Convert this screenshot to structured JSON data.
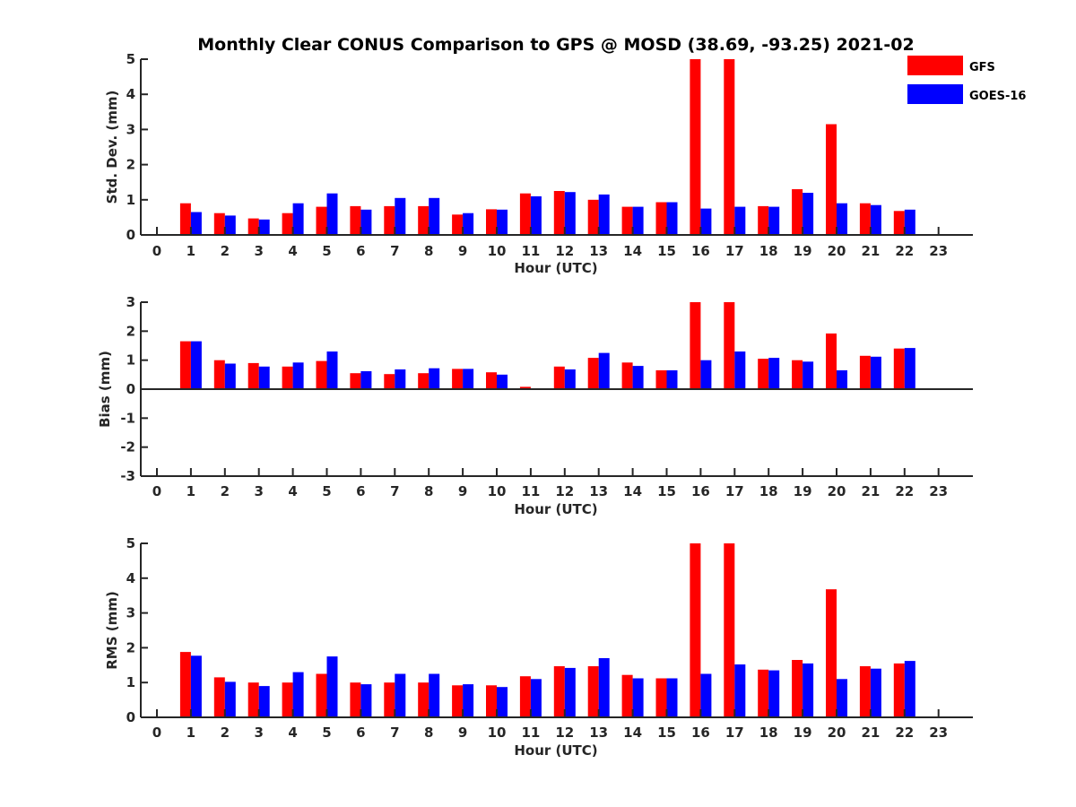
{
  "title": "Monthly Clear CONUS Comparison to GPS @ MOSD (38.69, -93.25) 2021-02",
  "legend": [
    {
      "name": "GFS",
      "color": "#ff0000"
    },
    {
      "name": "GOES-16",
      "color": "#0000ff"
    }
  ],
  "chart_data": [
    {
      "type": "bar",
      "id": "std",
      "ylabel": "Std. Dev. (mm)",
      "xlabel": "Hour (UTC)",
      "ylim": [
        0,
        5
      ],
      "yticks": [
        0,
        1,
        2,
        3,
        4,
        5
      ],
      "categories": [
        "0",
        "1",
        "2",
        "3",
        "4",
        "5",
        "6",
        "7",
        "8",
        "9",
        "10",
        "11",
        "12",
        "13",
        "14",
        "15",
        "16",
        "17",
        "18",
        "19",
        "20",
        "21",
        "22",
        "23"
      ],
      "series": [
        {
          "name": "GFS",
          "color": "#ff0000",
          "values": [
            null,
            0.9,
            0.62,
            0.47,
            0.62,
            0.8,
            0.82,
            0.82,
            0.82,
            0.58,
            0.73,
            1.18,
            1.25,
            1.0,
            0.8,
            0.93,
            5.0,
            5.0,
            0.82,
            1.3,
            3.15,
            0.9,
            0.68,
            null
          ]
        },
        {
          "name": "GOES-16",
          "color": "#0000ff",
          "values": [
            null,
            0.65,
            0.55,
            0.44,
            0.9,
            1.18,
            0.72,
            1.05,
            1.05,
            0.62,
            0.72,
            1.1,
            1.22,
            1.15,
            0.8,
            0.93,
            0.75,
            0.8,
            0.8,
            1.2,
            0.9,
            0.85,
            0.72,
            null
          ]
        }
      ]
    },
    {
      "type": "bar",
      "id": "bias",
      "ylabel": "Bias (mm)",
      "xlabel": "Hour (UTC)",
      "ylim": [
        -3,
        3
      ],
      "yticks": [
        -3,
        -2,
        -1,
        0,
        1,
        2,
        3
      ],
      "categories": [
        "0",
        "1",
        "2",
        "3",
        "4",
        "5",
        "6",
        "7",
        "8",
        "9",
        "10",
        "11",
        "12",
        "13",
        "14",
        "15",
        "16",
        "17",
        "18",
        "19",
        "20",
        "21",
        "22",
        "23"
      ],
      "series": [
        {
          "name": "GFS",
          "color": "#ff0000",
          "values": [
            null,
            1.65,
            1.0,
            0.9,
            0.78,
            0.97,
            0.55,
            0.52,
            0.55,
            0.7,
            0.58,
            0.08,
            0.78,
            1.08,
            0.92,
            0.65,
            3.0,
            3.0,
            1.05,
            1.0,
            1.92,
            1.15,
            1.4,
            null
          ]
        },
        {
          "name": "GOES-16",
          "color": "#0000ff",
          "values": [
            null,
            1.65,
            0.88,
            0.78,
            0.92,
            1.3,
            0.62,
            0.68,
            0.72,
            0.7,
            0.5,
            0.03,
            0.68,
            1.25,
            0.8,
            0.65,
            1.0,
            1.3,
            1.08,
            0.95,
            0.65,
            1.12,
            1.42,
            null
          ]
        }
      ]
    },
    {
      "type": "bar",
      "id": "rms",
      "ylabel": "RMS (mm)",
      "xlabel": "Hour (UTC)",
      "ylim": [
        0,
        5
      ],
      "yticks": [
        0,
        1,
        2,
        3,
        4,
        5
      ],
      "categories": [
        "0",
        "1",
        "2",
        "3",
        "4",
        "5",
        "6",
        "7",
        "8",
        "9",
        "10",
        "11",
        "12",
        "13",
        "14",
        "15",
        "16",
        "17",
        "18",
        "19",
        "20",
        "21",
        "22",
        "23"
      ],
      "series": [
        {
          "name": "GFS",
          "color": "#ff0000",
          "values": [
            null,
            1.88,
            1.15,
            1.0,
            1.0,
            1.25,
            1.0,
            1.0,
            1.0,
            0.92,
            0.92,
            1.18,
            1.47,
            1.47,
            1.22,
            1.12,
            5.0,
            5.0,
            1.37,
            1.65,
            3.68,
            1.47,
            1.55,
            null
          ]
        },
        {
          "name": "GOES-16",
          "color": "#0000ff",
          "values": [
            null,
            1.77,
            1.02,
            0.9,
            1.3,
            1.75,
            0.95,
            1.25,
            1.25,
            0.95,
            0.87,
            1.1,
            1.42,
            1.7,
            1.12,
            1.12,
            1.25,
            1.52,
            1.35,
            1.55,
            1.1,
            1.4,
            1.62,
            null
          ]
        }
      ]
    }
  ]
}
